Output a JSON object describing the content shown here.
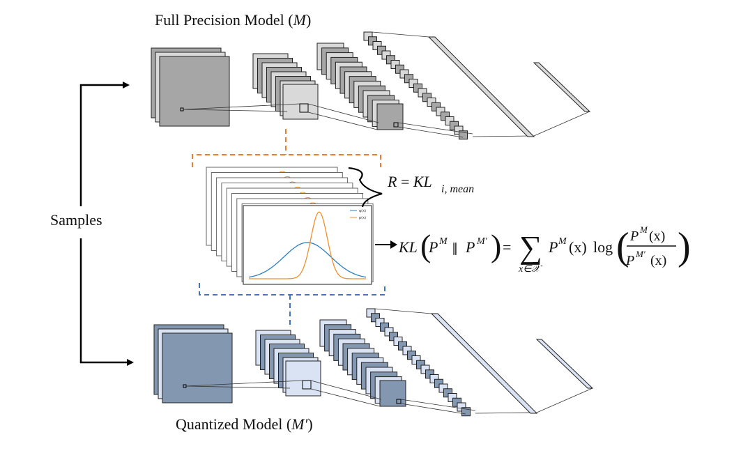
{
  "top_model": {
    "title_prefix": "Full Precision Model (",
    "symbol": "M",
    "title_suffix": ")"
  },
  "bottom_model": {
    "title_prefix": "Quantized Model (",
    "symbol": "M′",
    "title_suffix": ")"
  },
  "samples_label": "Samples",
  "regularizer": {
    "lhs": "R",
    "equals": " = ",
    "kl": "KL",
    "subscript": "i, mean"
  },
  "kl_formula": {
    "kl": "KL",
    "p_m": "P",
    "sup_m": "M",
    "parallel": "∥",
    "sup_m_prime": "M′",
    "equals": "=",
    "sum": "∑",
    "sum_index": "x∈𝒳",
    "px": "(x)",
    "log": "log",
    "num": "(x)",
    "den": "(x)"
  },
  "mini_plot_legend": [
    "q(x)",
    "p(x)"
  ],
  "colors": {
    "fp_fill": "#a6a6a6",
    "fp_light": "#d9d9d9",
    "q_fill": "#8497b0",
    "q_light": "#dae3f3",
    "orange": "#ed7d31",
    "blue": "#4472c4",
    "curve_blue": "#2e7fbf",
    "curve_orange": "#f0902a"
  }
}
